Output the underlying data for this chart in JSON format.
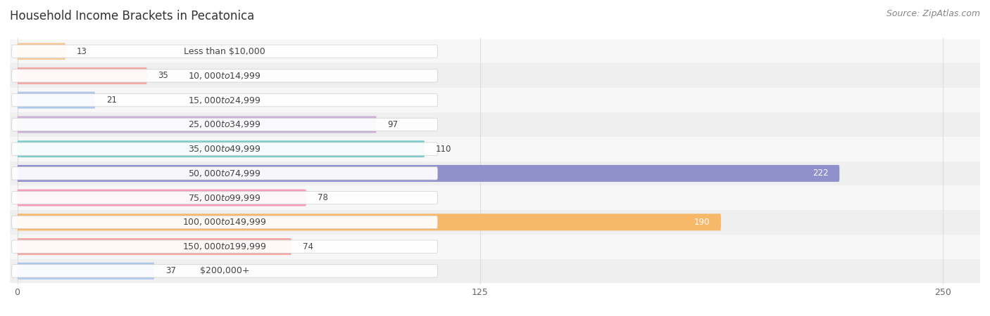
{
  "title": "Household Income Brackets in Pecatonica",
  "source": "Source: ZipAtlas.com",
  "categories": [
    "Less than $10,000",
    "$10,000 to $14,999",
    "$15,000 to $24,999",
    "$25,000 to $34,999",
    "$35,000 to $49,999",
    "$50,000 to $74,999",
    "$75,000 to $99,999",
    "$100,000 to $149,999",
    "$150,000 to $199,999",
    "$200,000+"
  ],
  "values": [
    13,
    35,
    21,
    97,
    110,
    222,
    78,
    190,
    74,
    37
  ],
  "bar_colors": [
    "#f8c99b",
    "#f4a8a4",
    "#aec8eb",
    "#c8b2d8",
    "#7dceca",
    "#9090cc",
    "#f89abe",
    "#f8b86a",
    "#f4a8a4",
    "#aec8eb"
  ],
  "xlim": [
    -2,
    260
  ],
  "xticks": [
    0,
    125,
    250
  ],
  "bg_color": "#ffffff",
  "row_colors": [
    "#f7f7f7",
    "#efefef"
  ],
  "grid_color": "#dddddd",
  "title_fontsize": 12,
  "source_fontsize": 9,
  "value_fontsize": 8.5,
  "label_fontsize": 9,
  "bar_height": 0.65,
  "value_color_dark": "#444444",
  "value_color_light": "#ffffff"
}
